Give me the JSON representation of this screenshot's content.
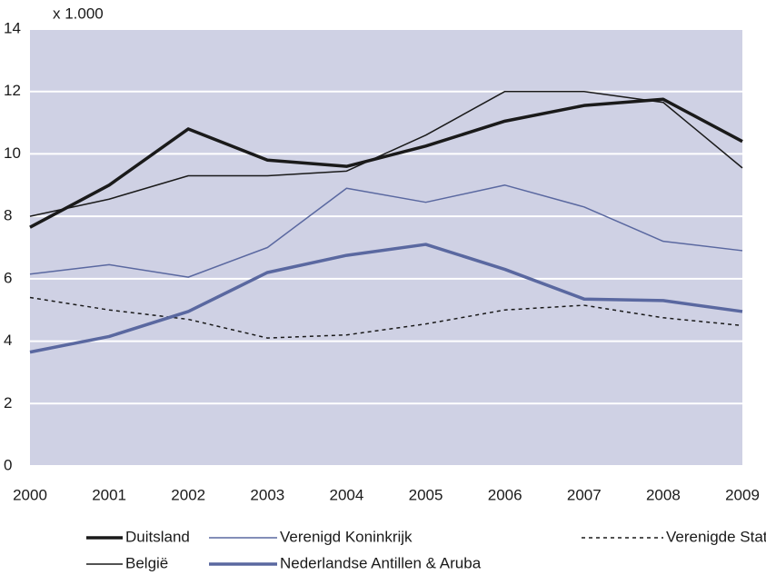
{
  "chart_data": {
    "type": "line",
    "ylabel": "x 1.000",
    "x": [
      2000,
      2001,
      2002,
      2003,
      2004,
      2005,
      2006,
      2007,
      2008,
      2009
    ],
    "xlim": [
      2000,
      2009
    ],
    "xticks": [
      2000,
      2001,
      2002,
      2003,
      2004,
      2005,
      2006,
      2007,
      2008,
      2009
    ],
    "ylim": [
      0,
      14
    ],
    "yticks": [
      0,
      2,
      4,
      6,
      8,
      10,
      12,
      14
    ],
    "grid": true,
    "background": "#cfd1e4",
    "legend": "bottom",
    "series": [
      {
        "name": "Duitsland",
        "color": "#1a1a1a",
        "linewidth": 3.5,
        "linestyle": "solid",
        "values": [
          7.65,
          9.0,
          10.8,
          9.8,
          9.6,
          10.25,
          11.05,
          11.55,
          11.75,
          10.4
        ]
      },
      {
        "name": "Verenigd Koninkrijk",
        "color": "#5a68a0",
        "linewidth": 1.5,
        "linestyle": "solid",
        "values": [
          6.15,
          6.45,
          6.05,
          7.0,
          8.9,
          8.45,
          9.0,
          8.3,
          7.2,
          6.9
        ]
      },
      {
        "name": "Verenigde Staten",
        "color": "#1a1a1a",
        "linewidth": 1.5,
        "linestyle": "dashed",
        "values": [
          5.4,
          5.0,
          4.7,
          4.1,
          4.2,
          4.55,
          5.0,
          5.15,
          4.75,
          4.5
        ]
      },
      {
        "name": "België",
        "color": "#1a1a1a",
        "linewidth": 1.5,
        "linestyle": "solid",
        "values": [
          8.0,
          8.55,
          9.3,
          9.3,
          9.45,
          10.6,
          12.0,
          12.0,
          11.65,
          9.55
        ]
      },
      {
        "name": "Nederlandse Antillen & Aruba",
        "color": "#5a68a0",
        "linewidth": 3.5,
        "linestyle": "solid",
        "values": [
          3.65,
          4.15,
          4.95,
          6.2,
          6.75,
          7.1,
          6.3,
          5.35,
          5.3,
          4.95
        ]
      }
    ]
  }
}
